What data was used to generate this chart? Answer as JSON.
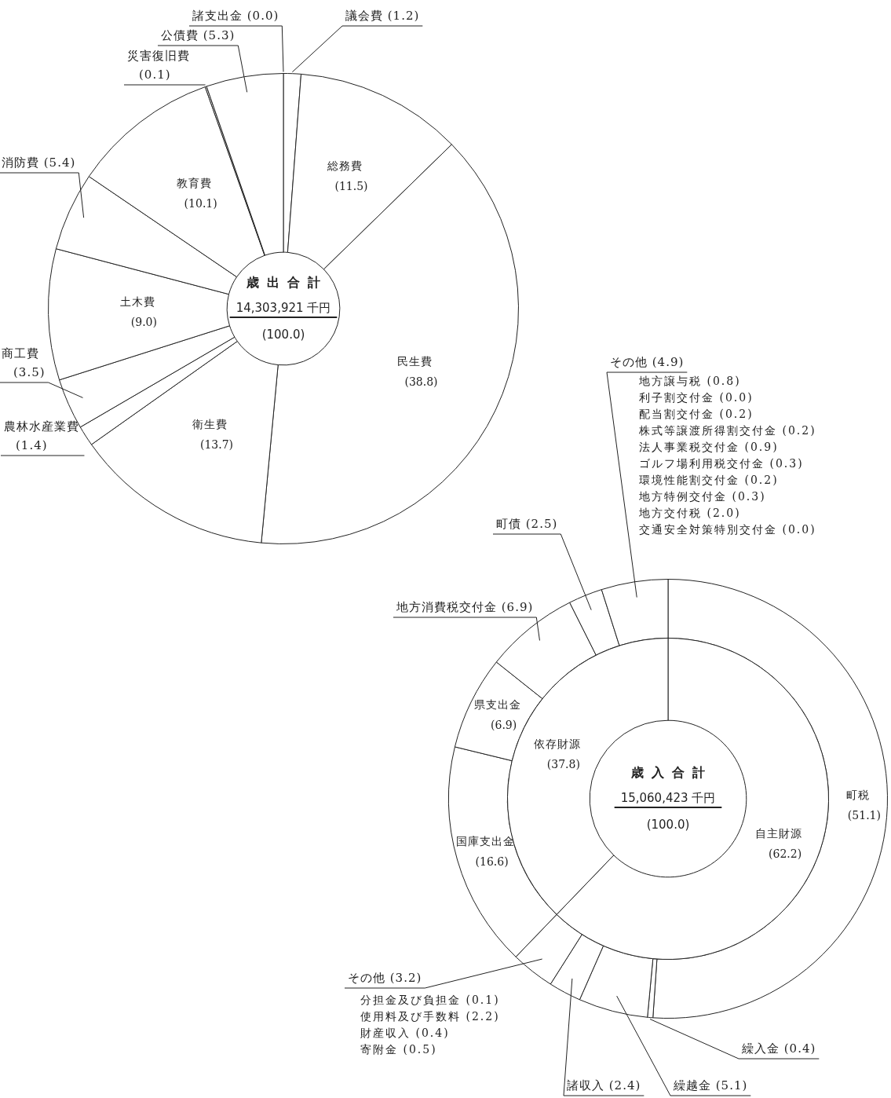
{
  "chart_data": [
    {
      "type": "donut",
      "title": "歳出合計",
      "subtitle": "14,303,921 千円",
      "categories": [
        "議会費",
        "総務費",
        "民生費",
        "衛生費",
        "農林水産業費",
        "商工費",
        "土木費",
        "消防費",
        "教育費",
        "災害復旧費",
        "公債費",
        "諸支出金"
      ],
      "values": [
        1.2,
        11.5,
        38.8,
        13.7,
        1.4,
        3.5,
        9.0,
        5.4,
        10.1,
        0.1,
        5.3,
        0.0
      ],
      "color": "#ffffff",
      "value_labels": [
        "(1.2)",
        "(11.5)",
        "(38.8)",
        "(13.7)",
        "(1.4)",
        "(3.5)",
        "(9.0)",
        "(5.4)",
        "(10.1)",
        "(0.1)",
        "(5.3)",
        "(0.0)"
      ],
      "annotations": [
        "(100.0)"
      ]
    },
    {
      "type": "donut",
      "categories": [
        "町税",
        "繰入金",
        "繰越金",
        "諸収入",
        "その他",
        "国庫支出金",
        "県支出金",
        "地方消費税交付金",
        "町債",
        "その他"
      ],
      "values": [
        51.1,
        0.4,
        5.1,
        2.4,
        3.2,
        16.6,
        6.9,
        6.9,
        2.5,
        4.9
      ],
      "color": "#ffffff",
      "value_labels": [
        "(51.1)",
        "(0.4)",
        "(5.1)",
        "(2.4)",
        "(3.2)",
        "(16.6)",
        "(6.9)",
        "(6.9)",
        "(2.5)",
        "(4.9)"
      ],
      "annotations": [
        "地方譲与税 (0.8)",
        "利子割交付金 (0.0)",
        "配当割交付金 (0.2)",
        "株式等譲渡所得割交付金 (0.2)",
        "法人事業税交付金 (0.9)",
        "ゴルフ場利用税交付金 (0.3)",
        "環境性能割交付金 (0.2)",
        "地方特例交付金 (0.3)",
        "地方交付税 (2.0)",
        "交通安全対策特別交付金 (0.0)",
        "分担金及び負担金 (0.1)",
        "使用料及び手数料 (2.2)",
        "財産収入 (0.4)",
        "寄附金 (0.5)"
      ]
    },
    {
      "type": "donut",
      "title": "歳入合計",
      "subtitle": "15,060,423 千円",
      "categories": [
        "自主財源",
        "依存財源"
      ],
      "values": [
        62.2,
        37.8
      ],
      "color": "#ffffff",
      "value_labels": [
        "(62.2)",
        "(37.8)"
      ],
      "annotations": [
        "(100.0)"
      ]
    }
  ]
}
